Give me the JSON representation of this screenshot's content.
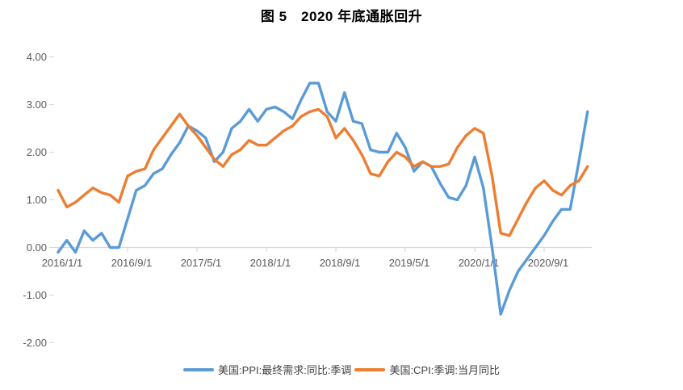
{
  "title": "图 5　2020 年底通胀回升",
  "chart_data": {
    "type": "line",
    "x_start": "2016/1",
    "x_end": "2021/2",
    "x_frequency": "monthly",
    "x_tick_labels": [
      "2016/1/1",
      "2016/9/1",
      "2017/5/1",
      "2018/1/1",
      "2018/9/1",
      "2019/5/1",
      "2020/1/1",
      "2020/9/1"
    ],
    "x_tick_month_index": [
      0,
      8,
      16,
      24,
      32,
      40,
      48,
      56
    ],
    "y_tick_labels": [
      "4.00",
      "3.00",
      "2.00",
      "1.00",
      "0.00",
      "-1.00",
      "-2.00"
    ],
    "y_tick_values": [
      4,
      3,
      2,
      1,
      0,
      -1,
      -2
    ],
    "ylim": [
      -2,
      4
    ],
    "grid": false,
    "legend_position": "bottom",
    "axis_color": "#D9D9D9",
    "label_color": "#595959",
    "series": [
      {
        "name": "美国:PPI:最终需求:同比:季调",
        "color": "#5B9BD5",
        "values": [
          -0.1,
          0.15,
          -0.1,
          0.35,
          0.15,
          0.3,
          0.0,
          0.0,
          0.6,
          1.2,
          1.3,
          1.55,
          1.65,
          1.95,
          2.2,
          2.55,
          2.45,
          2.3,
          1.8,
          2.0,
          2.5,
          2.65,
          2.9,
          2.65,
          2.9,
          2.95,
          2.85,
          2.7,
          3.1,
          3.45,
          3.45,
          2.85,
          2.65,
          3.25,
          2.65,
          2.6,
          2.05,
          2.0,
          2.0,
          2.4,
          2.1,
          1.6,
          1.8,
          1.7,
          1.35,
          1.05,
          1.0,
          1.3,
          1.9,
          1.25,
          0.0,
          -1.4,
          -0.9,
          -0.5,
          -0.25,
          0.0,
          0.25,
          0.55,
          0.8,
          0.8,
          1.8,
          2.85
        ]
      },
      {
        "name": "美国:CPI:季调:当月同比",
        "color": "#ED7D31",
        "values": [
          1.2,
          0.85,
          0.95,
          1.1,
          1.25,
          1.15,
          1.1,
          0.95,
          1.5,
          1.6,
          1.65,
          2.05,
          2.3,
          2.55,
          2.8,
          2.55,
          2.35,
          2.1,
          1.85,
          1.7,
          1.95,
          2.05,
          2.25,
          2.15,
          2.15,
          2.3,
          2.45,
          2.55,
          2.75,
          2.85,
          2.9,
          2.75,
          2.3,
          2.5,
          2.25,
          1.95,
          1.55,
          1.5,
          1.8,
          2.0,
          1.9,
          1.7,
          1.8,
          1.7,
          1.7,
          1.75,
          2.1,
          2.35,
          2.5,
          2.4,
          1.5,
          0.3,
          0.25,
          0.6,
          0.95,
          1.25,
          1.4,
          1.2,
          1.1,
          1.3,
          1.4,
          1.7
        ]
      }
    ]
  }
}
